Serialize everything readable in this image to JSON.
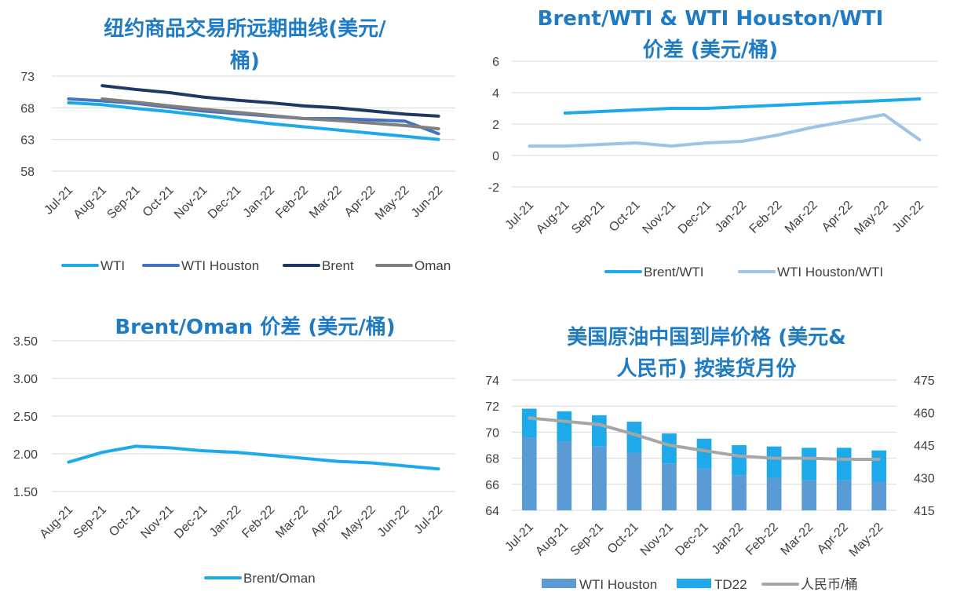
{
  "colors": {
    "title": "#1f7bc4",
    "grid": "#d9d9d9",
    "tick_text": "#404040",
    "wti": "#1eaaea",
    "wti_houston": "#4472c4",
    "brent": "#1f3864",
    "oman": "#7f7f7f",
    "brent_wti": "#1eaaea",
    "wti_houston_wti": "#9dc3e6",
    "brent_oman": "#1eaaea",
    "bar_houston": "#5b9bd5",
    "bar_td22": "#1eaaea",
    "rmb": "#a6a6a6"
  },
  "chart_data": [
    {
      "id": "futures-curve",
      "type": "line",
      "title": "纽约商品交易所远期曲线(美元/桶)",
      "title_lines": [
        "纽约商品交易所远期曲线(美元/",
        "桶)"
      ],
      "categories": [
        "Jul-21",
        "Aug-21",
        "Sep-21",
        "Oct-21",
        "Nov-21",
        "Dec-21",
        "Jan-22",
        "Feb-22",
        "Mar-22",
        "Apr-22",
        "May-22",
        "Jun-22"
      ],
      "yticks": [
        "73",
        "68",
        "63",
        "58"
      ],
      "ylim": [
        58,
        73
      ],
      "series": [
        {
          "name": "WTI",
          "values": [
            68.8,
            68.5,
            67.9,
            67.4,
            66.8,
            66.1,
            65.5,
            65.0,
            64.5,
            64.0,
            63.5,
            63.0
          ]
        },
        {
          "name": "WTI Houston",
          "values": [
            69.4,
            69.1,
            68.7,
            68.1,
            67.5,
            67.1,
            66.7,
            66.3,
            66.3,
            66.1,
            65.9,
            63.9
          ]
        },
        {
          "name": "Brent",
          "values": [
            null,
            71.5,
            70.9,
            70.4,
            69.7,
            69.2,
            68.8,
            68.3,
            68.0,
            67.5,
            67.0,
            66.7
          ]
        },
        {
          "name": "Oman",
          "values": [
            null,
            69.4,
            68.9,
            68.3,
            67.8,
            67.3,
            66.8,
            66.3,
            66.0,
            65.6,
            65.2,
            64.7
          ]
        }
      ],
      "grid": true,
      "legend": "bottom"
    },
    {
      "id": "brent-wti-spread",
      "type": "line",
      "title": "Brent/WTI & WTI Houston/WTI 价差 (美元/桶)",
      "title_lines": [
        "Brent/WTI & WTI Houston/WTI",
        "价差 (美元/桶)"
      ],
      "categories": [
        "Jul-21",
        "Aug-21",
        "Sep-21",
        "Oct-21",
        "Nov-21",
        "Dec-21",
        "Jan-22",
        "Feb-22",
        "Mar-22",
        "Apr-22",
        "May-22",
        "Jun-22"
      ],
      "yticks": [
        "6",
        "4",
        "2",
        "0",
        "-2"
      ],
      "ylim": [
        -2,
        6
      ],
      "series": [
        {
          "name": "Brent/WTI",
          "values": [
            null,
            2.7,
            2.8,
            2.9,
            3.0,
            3.0,
            3.1,
            3.2,
            3.3,
            3.4,
            3.5,
            3.6
          ]
        },
        {
          "name": "WTI Houston/WTI",
          "values": [
            0.6,
            0.6,
            0.7,
            0.8,
            0.6,
            0.8,
            0.9,
            1.3,
            1.8,
            2.2,
            2.6,
            1.0
          ]
        }
      ],
      "grid": true,
      "legend": "bottom"
    },
    {
      "id": "brent-oman-spread",
      "type": "line",
      "title": "Brent/Oman 价差 (美元/桶)",
      "title_lines": [
        "Brent/Oman 价差 (美元/桶)"
      ],
      "categories": [
        "Aug-21",
        "Sep-21",
        "Oct-21",
        "Nov-21",
        "Dec-21",
        "Jan-22",
        "Feb-22",
        "Mar-22",
        "Apr-22",
        "May-22",
        "Jun-22",
        "Jul-22"
      ],
      "yticks": [
        "3.50",
        "3.00",
        "2.50",
        "2.00",
        "1.50"
      ],
      "ylim": [
        1.5,
        3.5
      ],
      "series": [
        {
          "name": "Brent/Oman",
          "values": [
            1.89,
            2.02,
            2.1,
            2.08,
            2.04,
            2.02,
            1.98,
            1.94,
            1.9,
            1.88,
            1.84,
            1.8
          ]
        }
      ],
      "grid": true,
      "legend": "bottom"
    },
    {
      "id": "china-landed-price",
      "type": "bar",
      "title": "美国原油中国到岸价格 (美元&人民币) 按装货月份",
      "title_lines": [
        "美国原油中国到岸价格 (美元&",
        "人民币) 按装货月份"
      ],
      "categories": [
        "Jul-21",
        "Aug-21",
        "Sep-21",
        "Oct-21",
        "Nov-21",
        "Dec-21",
        "Jan-22",
        "Feb-22",
        "Mar-22",
        "Apr-22",
        "May-22"
      ],
      "yticks_left": [
        "74",
        "72",
        "70",
        "68",
        "66",
        "64"
      ],
      "ylim_left": [
        64,
        74
      ],
      "yticks_right": [
        "475",
        "460",
        "445",
        "430",
        "415"
      ],
      "ylim_right": [
        415,
        475
      ],
      "series": [
        {
          "name": "WTI Houston",
          "type": "bar",
          "values": [
            69.6,
            69.3,
            68.9,
            68.4,
            67.6,
            67.2,
            66.7,
            66.5,
            66.3,
            66.3,
            66.2
          ]
        },
        {
          "name": "TD22",
          "type": "bar",
          "values": [
            2.2,
            2.3,
            2.4,
            2.4,
            2.3,
            2.3,
            2.3,
            2.4,
            2.5,
            2.5,
            2.4
          ]
        },
        {
          "name": "人民币/桶",
          "type": "line",
          "axis": "right",
          "values": [
            457.5,
            456.0,
            454.5,
            450.0,
            445.0,
            442.5,
            440.0,
            439.0,
            439.0,
            438.5,
            438.5
          ]
        }
      ],
      "stacked": true,
      "grid": true,
      "legend": "bottom"
    }
  ]
}
